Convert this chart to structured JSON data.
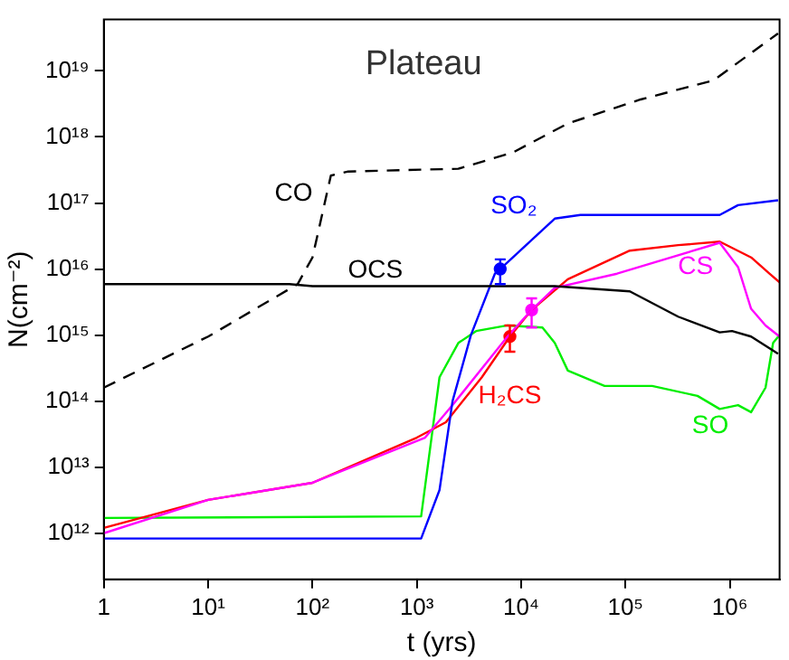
{
  "chart_data": {
    "type": "line",
    "title": "Plateau",
    "xlabel": "t (yrs)",
    "ylabel": "N(cm⁻²)",
    "log": "xy",
    "grid": false,
    "legend": false,
    "marker": "none",
    "xlim": [
      1,
      3000000
    ],
    "ylim": [
      200000000000,
      60000000000000000000
    ],
    "xticks": [
      1,
      {
        "value": 10,
        "label": "10¹"
      },
      {
        "value": 100,
        "label": "10²"
      },
      {
        "value": 1000,
        "label": "10³"
      },
      {
        "value": 10000,
        "label": "10⁴"
      },
      {
        "value": 100000,
        "label": "10⁵"
      },
      {
        "value": 1000000,
        "label": "10⁶"
      }
    ],
    "yticks": [
      {
        "value": 1000000000000.0,
        "label": "10¹²"
      },
      {
        "value": 10000000000000.0,
        "label": "10¹³"
      },
      {
        "value": 100000000000000.0,
        "label": "10¹⁴"
      },
      {
        "value": 1000000000000000.0,
        "label": "10¹⁵"
      },
      {
        "value": 1e+16,
        "label": "10¹⁶"
      },
      {
        "value": 1e+17,
        "label": "10¹⁷"
      },
      {
        "value": 1e+18,
        "label": "10¹⁸"
      },
      {
        "value": 1e+19,
        "label": "10¹⁹"
      }
    ],
    "series": [
      {
        "name": "CO",
        "color": "#000000",
        "line_style": "dashed",
        "x": [
          1,
          10,
          72,
          100,
          150,
          220,
          2500,
          8300,
          28000,
          140000,
          700000,
          2900000
        ],
        "values": [
          160000000000000.0,
          950000000000000.0,
          5900000000000000.0,
          1.5e+16,
          2.6e+17,
          3e+17,
          3.3e+17,
          5.8e+17,
          1.6e+18,
          3.7e+18,
          7.2e+18,
          3.7e+19
        ]
      },
      {
        "name": "OCS",
        "color": "#000000",
        "line_style": "solid",
        "x": [
          1,
          60,
          100,
          1000,
          21000,
          110000,
          320000,
          800000,
          1050000,
          1600000,
          2900000
        ],
        "values": [
          5900000000000000.0,
          5900000000000000.0,
          5500000000000000.0,
          5500000000000000.0,
          5500000000000000.0,
          4600000000000000.0,
          1900000000000000.0,
          1100000000000000.0,
          1150000000000000.0,
          950000000000000.0,
          520000000000000.0
        ]
      },
      {
        "name": "SO₂",
        "color": "#0000ff",
        "line_style": "solid",
        "x": [
          1,
          1100,
          1650,
          2200,
          3300,
          5600,
          6300,
          21000,
          37000,
          800000,
          1200000,
          2900000
        ],
        "values": [
          830000000000.0,
          830000000000.0,
          4500000000000.0,
          100000000000000.0,
          1000000000000000.0,
          8500000000000000.0,
          1e+16,
          5.8e+16,
          6.6e+16,
          6.6e+16,
          9.3e+16,
          1.1e+17
        ]
      },
      {
        "name": "CS",
        "color": "#ff00ff",
        "line_style": "solid",
        "x": [
          1,
          10,
          100,
          1200,
          2200,
          7400,
          12600,
          21000,
          83000,
          800000,
          1200000,
          1600000,
          2200000,
          3000000
        ],
        "values": [
          1000000000000.0,
          3200000000000.0,
          5800000000000.0,
          28000000000000.0,
          87000000000000.0,
          950000000000000.0,
          2400000000000000.0,
          5200000000000000.0,
          8500000000000000.0,
          2.5e+16,
          1.07e+16,
          2500000000000000.0,
          1400000000000000.0,
          950000000000000.0
        ]
      },
      {
        "name": "H₂CS",
        "color": "#ff0000",
        "line_style": "solid",
        "x": [
          1,
          10,
          100,
          1000,
          1900,
          4200,
          7800,
          12600,
          28000,
          110000,
          320000,
          800000,
          1600000,
          2400000,
          3000000
        ],
        "values": [
          1200000000000.0,
          3200000000000.0,
          5800000000000.0,
          28000000000000.0,
          48000000000000.0,
          230000000000000.0,
          950000000000000.0,
          2400000000000000.0,
          7000000000000000.0,
          1.9e+16,
          2.3e+16,
          2.6e+16,
          1.5e+16,
          8500000000000000.0,
          6300000000000000.0
        ]
      },
      {
        "name": "SO",
        "color": "#00ee00",
        "line_style": "solid",
        "x": [
          1,
          1100,
          1650,
          2500,
          3700,
          7400,
          16000,
          21000,
          28000,
          63000,
          180000,
          490000,
          800000,
          1200000,
          1600000,
          2200000,
          2600000,
          3000000
        ],
        "values": [
          1700000000000.0,
          1800000000000.0,
          230000000000000.0,
          760000000000000.0,
          1150000000000000.0,
          1400000000000000.0,
          1300000000000000.0,
          760000000000000.0,
          290000000000000.0,
          170000000000000.0,
          170000000000000.0,
          120000000000000.0,
          76000000000000.0,
          87000000000000.0,
          68000000000000.0,
          160000000000000.0,
          760000000000000.0,
          1000000000000000.0
        ]
      },
      {
        "type": "scatter",
        "color": "#0000ff",
        "marker": "circle",
        "x": [
          6300
        ],
        "values": [
          1e+16
        ],
        "errors": [
          [
            5900000000000000.0,
            1.4e+16
          ]
        ]
      },
      {
        "type": "scatter",
        "color": "#ff00ff",
        "marker": "circle",
        "x": [
          12600
        ],
        "values": [
          2400000000000000.0
        ],
        "errors": [
          [
            1300000000000000.0,
            3600000000000000.0
          ]
        ]
      },
      {
        "type": "scatter",
        "color": "#ff0000",
        "marker": "circle",
        "x": [
          7800
        ],
        "values": [
          950000000000000.0
        ],
        "errors": [
          [
            560000000000000.0,
            1400000000000000.0
          ]
        ]
      }
    ]
  }
}
